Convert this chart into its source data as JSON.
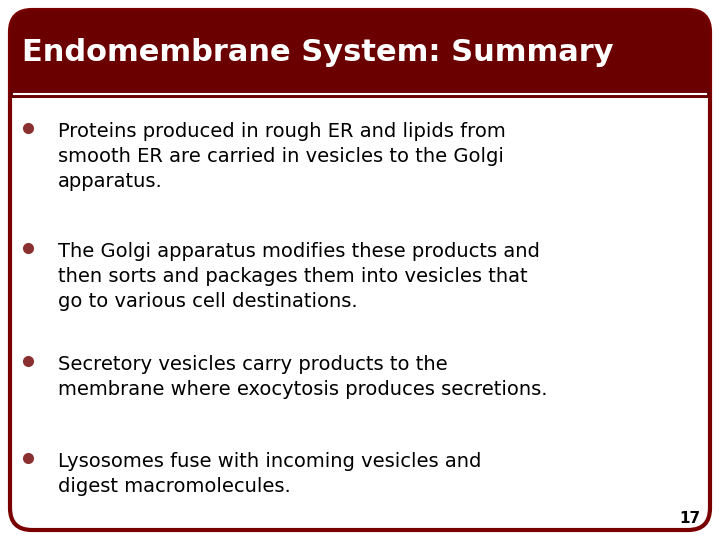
{
  "title": "Endomembrane System: Summary",
  "title_bg_color": "#6B0000",
  "title_text_color": "#FFFFFF",
  "slide_bg_color": "#FFFFFF",
  "border_color": "#7A0000",
  "bullet_color": "#8B3030",
  "text_color": "#000000",
  "separator_color": "#FFFFFF",
  "bullet_points": [
    "Proteins produced in rough ER and lipids from\nsmooth ER are carried in vesicles to the Golgi\napparatus.",
    "The Golgi apparatus modifies these products and\nthen sorts and packages them into vesicles that\ngo to various cell destinations.",
    "Secretory vesicles carry products to the\nmembrane where exocytosis produces secretions.",
    "Lysosomes fuse with incoming vesicles and\ndigest macromolecules."
  ],
  "page_number": "17",
  "title_fontsize": 22,
  "body_fontsize": 14,
  "page_num_fontsize": 11
}
